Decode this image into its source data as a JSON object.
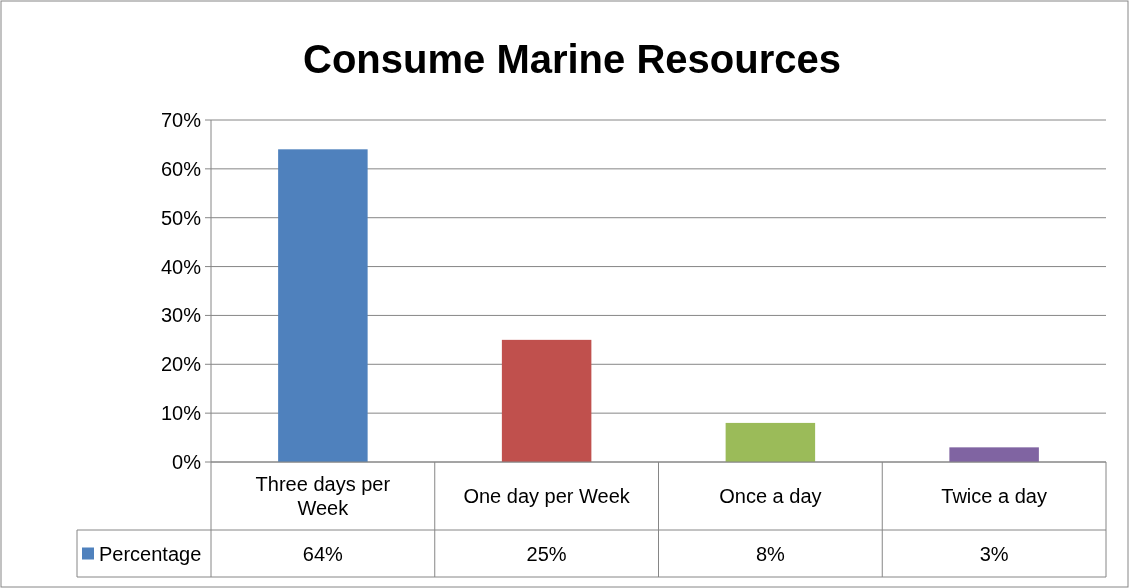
{
  "chart_data": {
    "type": "bar",
    "title": "Consume Marine Resources",
    "categories": [
      "Three days per Week",
      "One day per Week",
      "Once a day",
      "Twice a day"
    ],
    "series": [
      {
        "name": "Percentage",
        "color": "#4f81bd",
        "colors": [
          "#4f81bd",
          "#c0504d",
          "#9bbb59",
          "#8064a2"
        ],
        "values": [
          64,
          25,
          8,
          3
        ],
        "value_labels": [
          "64%",
          "25%",
          "8%",
          "3%"
        ]
      }
    ],
    "ylim": [
      0,
      70
    ],
    "yticks": [
      {
        "value": 0,
        "label": "0%"
      },
      {
        "value": 10,
        "label": "10%"
      },
      {
        "value": 20,
        "label": "20%"
      },
      {
        "value": 30,
        "label": "30%"
      },
      {
        "value": 40,
        "label": "40%"
      },
      {
        "value": 50,
        "label": "50%"
      },
      {
        "value": 60,
        "label": "60%"
      },
      {
        "value": 70,
        "label": "70%"
      }
    ],
    "grid": "y",
    "legend": "bottom left"
  }
}
